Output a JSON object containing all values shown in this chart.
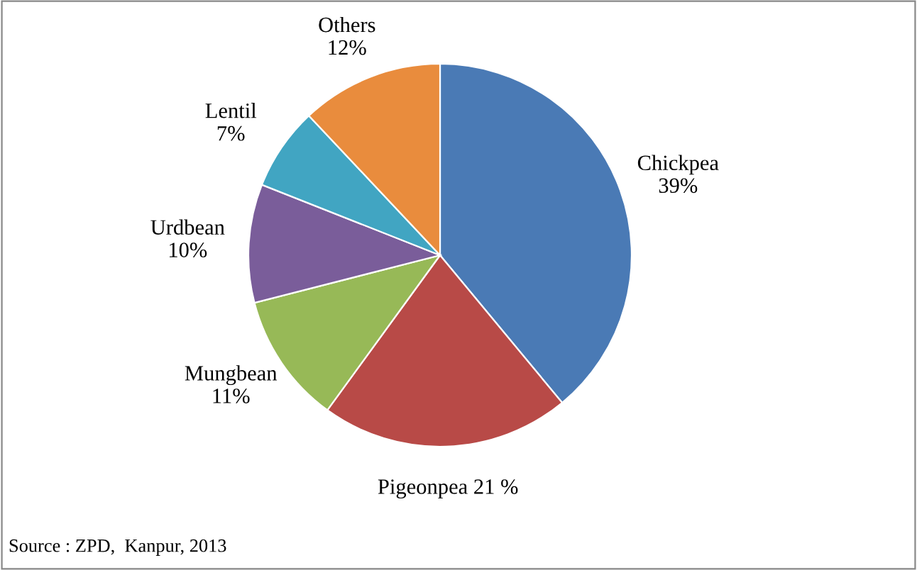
{
  "chart_data": {
    "type": "pie",
    "categories": [
      "Chickpea",
      "Pigeonpea",
      "Mungbean",
      "Urdbean",
      "Lentil",
      "Others"
    ],
    "values": [
      39,
      21,
      11,
      10,
      7,
      12
    ],
    "value_labels": [
      "39%",
      "21 %",
      "11%",
      "10%",
      "7%",
      "12%"
    ],
    "colors": [
      "#4a7ab5",
      "#b84a47",
      "#97b957",
      "#7a5d9a",
      "#41a5c2",
      "#e98c3d"
    ],
    "annotations": [
      "Source : ZPD,  Kanpur, 2013"
    ],
    "legend": false
  }
}
